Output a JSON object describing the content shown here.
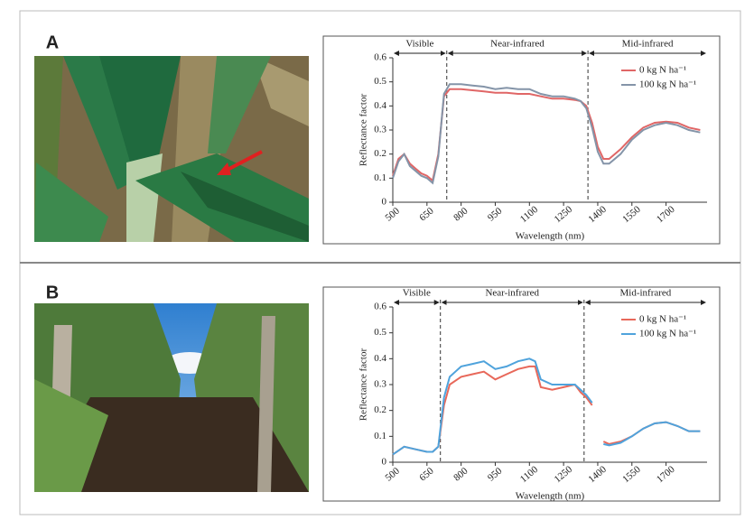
{
  "chart_data": [
    {
      "type": "line",
      "panel": "A",
      "y_label": "Reflectance factor",
      "x_label": "Wavelength (nm)",
      "regions": [
        "Visible",
        "Near-infrared",
        "Mid-infrared"
      ],
      "dividers": [
        737,
        1357
      ],
      "x": [
        500,
        525,
        550,
        575,
        600,
        625,
        650,
        675,
        700,
        725,
        750,
        800,
        850,
        900,
        950,
        1000,
        1050,
        1100,
        1150,
        1200,
        1250,
        1300,
        1325,
        1350,
        1375,
        1400,
        1425,
        1450,
        1500,
        1550,
        1600,
        1650,
        1700,
        1750,
        1800,
        1850
      ],
      "series": [
        {
          "name": "0 kg N ha⁻¹",
          "color": "#e06666",
          "values": [
            0.11,
            0.18,
            0.2,
            0.16,
            0.14,
            0.12,
            0.11,
            0.09,
            0.2,
            0.44,
            0.47,
            0.47,
            0.465,
            0.46,
            0.455,
            0.455,
            0.45,
            0.45,
            0.44,
            0.43,
            0.43,
            0.425,
            0.42,
            0.4,
            0.33,
            0.23,
            0.18,
            0.18,
            0.22,
            0.27,
            0.31,
            0.33,
            0.335,
            0.33,
            0.31,
            0.3
          ]
        },
        {
          "name": "100 kg N ha⁻¹",
          "color": "#8494a8",
          "values": [
            0.1,
            0.17,
            0.2,
            0.15,
            0.13,
            0.11,
            0.1,
            0.08,
            0.19,
            0.45,
            0.49,
            0.49,
            0.485,
            0.48,
            0.47,
            0.475,
            0.47,
            0.47,
            0.45,
            0.44,
            0.44,
            0.43,
            0.42,
            0.39,
            0.31,
            0.21,
            0.16,
            0.16,
            0.2,
            0.26,
            0.3,
            0.32,
            0.33,
            0.32,
            0.3,
            0.29
          ]
        }
      ],
      "xlim": [
        500,
        1880
      ],
      "xticks": [
        500,
        650,
        800,
        950,
        1100,
        1250,
        1400,
        1550,
        1700
      ],
      "ylim": [
        0,
        0.6
      ],
      "yticks": [
        0,
        0.1,
        0.2,
        0.3,
        0.4,
        0.5,
        0.6
      ],
      "legend": "upper right"
    },
    {
      "type": "line",
      "panel": "B",
      "y_label": "Reflectance factor",
      "x_label": "Wavelength (nm)",
      "regions": [
        "Visible",
        "Near-infrared",
        "Mid-infrared"
      ],
      "dividers": [
        709,
        1340
      ],
      "x": [
        500,
        550,
        600,
        650,
        675,
        700,
        725,
        750,
        800,
        850,
        900,
        950,
        1000,
        1050,
        1100,
        1125,
        1150,
        1200,
        1250,
        1300,
        1325,
        1350,
        1375,
        1400,
        1425,
        1450,
        1500,
        1550,
        1600,
        1650,
        1700,
        1750,
        1800,
        1850
      ],
      "series": [
        {
          "name": "0 kg N ha⁻¹",
          "color": "#e8685a",
          "values": [
            0.03,
            0.06,
            0.05,
            0.04,
            0.04,
            0.06,
            0.22,
            0.3,
            0.33,
            0.34,
            0.35,
            0.32,
            0.34,
            0.36,
            0.37,
            0.37,
            0.29,
            0.28,
            0.29,
            0.3,
            0.27,
            0.25,
            0.22,
            null,
            0.08,
            0.07,
            0.08,
            0.1,
            0.13,
            0.15,
            0.155,
            0.14,
            0.12,
            0.12
          ]
        },
        {
          "name": "100 kg N ha⁻¹",
          "color": "#4fa3dc",
          "values": [
            0.03,
            0.06,
            0.05,
            0.04,
            0.04,
            0.06,
            0.25,
            0.33,
            0.37,
            0.38,
            0.39,
            0.36,
            0.37,
            0.39,
            0.4,
            0.39,
            0.32,
            0.3,
            0.3,
            0.3,
            0.28,
            0.26,
            0.23,
            null,
            0.07,
            0.065,
            0.075,
            0.1,
            0.13,
            0.15,
            0.155,
            0.14,
            0.12,
            0.12
          ]
        }
      ],
      "xlim": [
        500,
        1880
      ],
      "xticks": [
        500,
        650,
        800,
        950,
        1100,
        1250,
        1400,
        1550,
        1700
      ],
      "ylim": [
        0,
        0.6
      ],
      "yticks": [
        0,
        0.1,
        0.2,
        0.3,
        0.4,
        0.5,
        0.6
      ],
      "legend": "upper right"
    }
  ]
}
